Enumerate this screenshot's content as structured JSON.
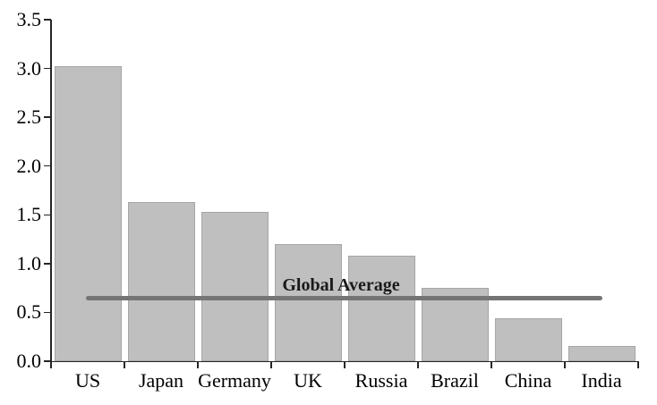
{
  "chart_data": {
    "type": "bar",
    "title": "",
    "xlabel": "",
    "ylabel": "",
    "categories": [
      "US",
      "Japan",
      "Germany",
      "UK",
      "Russia",
      "Brazil",
      "China",
      "India"
    ],
    "values": [
      3.02,
      1.63,
      1.53,
      1.2,
      1.08,
      0.75,
      0.44,
      0.16
    ],
    "ylim": [
      0,
      3.5
    ],
    "ytick_labels": [
      "0.0",
      "0.5",
      "1.0",
      "1.5",
      "2.0",
      "2.5",
      "3.0",
      "3.5"
    ],
    "grid": false,
    "legend_position": "none",
    "annotation": {
      "label": "Global Average",
      "value": 0.65
    },
    "colors": {
      "background": "#ffffff",
      "bar_fill": "#bfbfbf",
      "bar_border": "#a6a6a6",
      "average_line": "#757575",
      "axis": "#262626",
      "text": "#000000"
    }
  }
}
